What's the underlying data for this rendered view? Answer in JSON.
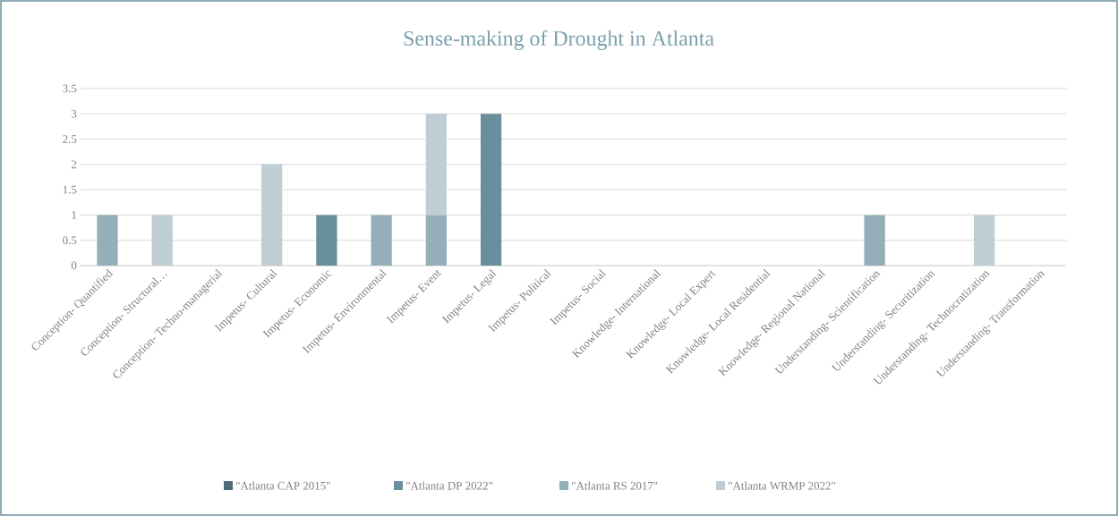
{
  "chart_data": {
    "type": "bar",
    "stacked": true,
    "title": "Sense-making  of Drought  in Atlanta",
    "categories": [
      "Conception- Quantified",
      "Conception- Structural…",
      "Conception- Techno-managerial",
      "Impetus- Cultural",
      "Impetus- Economic",
      "Impetus- Environmental",
      "Impetus- Event",
      "Impetus- Legal",
      "Impetus- Political",
      "Impetus- Social",
      "Knowledge- International",
      "Knowledge- Local Expert",
      "Knowledge- Local Residential",
      "Knowledge- Regional National",
      "Understanding- Scientification",
      "Understanding- Securitization",
      "Understanding- Technocratization",
      "Understanding- Transformation"
    ],
    "series": [
      {
        "name": "\"Atlanta CAP 2015\"",
        "color": "#4d6b78",
        "values": [
          0,
          0,
          0,
          0,
          0,
          0,
          0,
          0,
          0,
          0,
          0,
          0,
          0,
          0,
          0,
          0,
          0,
          0
        ]
      },
      {
        "name": "\"Atlanta DP 2022\"",
        "color": "#6a8f9c",
        "values": [
          0,
          0,
          0,
          0,
          1,
          0,
          0,
          3,
          0,
          0,
          0,
          0,
          0,
          0,
          0,
          0,
          0,
          0
        ]
      },
      {
        "name": "\"Atlanta RS 2017\"",
        "color": "#94afb9",
        "values": [
          1,
          0,
          0,
          0,
          0,
          1,
          1,
          0,
          0,
          0,
          0,
          0,
          0,
          0,
          1,
          0,
          0,
          0
        ]
      },
      {
        "name": "\"Atlanta WRMP 2022\"",
        "color": "#bfcdd4",
        "values": [
          0,
          1,
          0,
          2,
          0,
          0,
          2,
          0,
          0,
          0,
          0,
          0,
          0,
          0,
          0,
          0,
          1,
          0
        ]
      }
    ],
    "ylim": [
      0,
      3.5
    ],
    "yticks": [
      0,
      0.5,
      1,
      1.5,
      2,
      2.5,
      3,
      3.5
    ],
    "grid": "y",
    "legend": "bottom"
  }
}
